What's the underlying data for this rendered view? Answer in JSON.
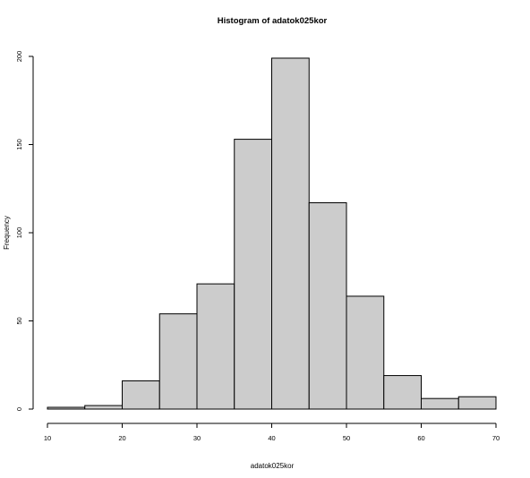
{
  "chart_data": {
    "type": "bar",
    "title": "Histogram of adatok025kor",
    "xlabel": "adatok025kor",
    "ylabel": "Frequency",
    "bins": [
      {
        "start": 10,
        "end": 15,
        "count": 1
      },
      {
        "start": 15,
        "end": 20,
        "count": 2
      },
      {
        "start": 20,
        "end": 25,
        "count": 16
      },
      {
        "start": 25,
        "end": 30,
        "count": 54
      },
      {
        "start": 30,
        "end": 35,
        "count": 71
      },
      {
        "start": 35,
        "end": 40,
        "count": 153
      },
      {
        "start": 40,
        "end": 45,
        "count": 199
      },
      {
        "start": 45,
        "end": 50,
        "count": 117
      },
      {
        "start": 50,
        "end": 55,
        "count": 64
      },
      {
        "start": 55,
        "end": 60,
        "count": 19
      },
      {
        "start": 60,
        "end": 65,
        "count": 6
      },
      {
        "start": 65,
        "end": 70,
        "count": 7
      }
    ],
    "xlim": [
      10,
      70
    ],
    "ylim": [
      0,
      200
    ],
    "x_ticks": [
      10,
      20,
      30,
      40,
      50,
      60,
      70
    ],
    "y_ticks": [
      0,
      50,
      100,
      150,
      200
    ],
    "x_tick_labels": [
      "10",
      "20",
      "30",
      "40",
      "50",
      "60",
      "70"
    ],
    "y_tick_labels": [
      "0",
      "50",
      "100",
      "150",
      "200"
    ],
    "bar_color": "#cccccc",
    "grid": false
  }
}
